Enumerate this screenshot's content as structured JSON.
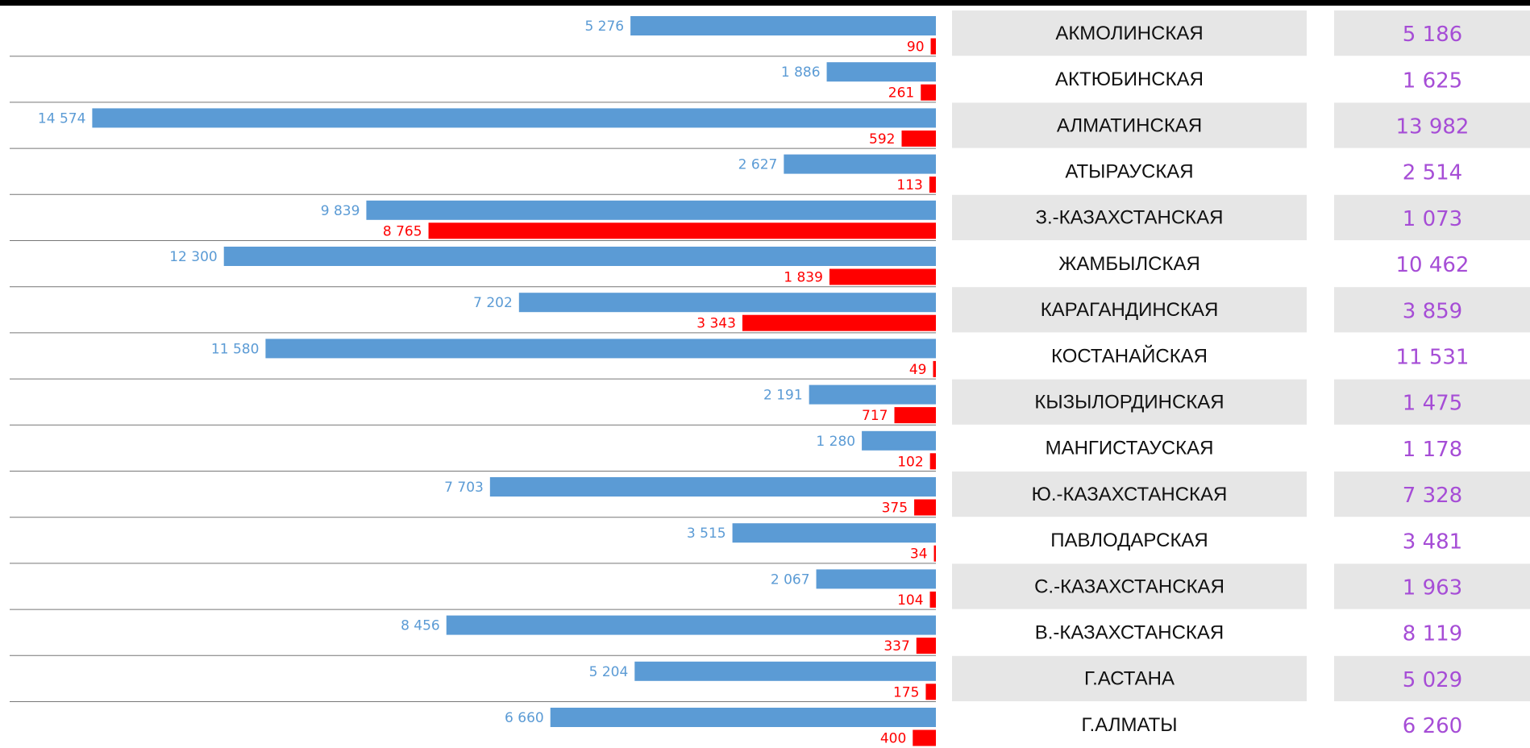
{
  "chart_data": {
    "type": "bar",
    "orientation": "horizontal",
    "x_reversed": true,
    "xlim": [
      0,
      16000
    ],
    "categories": [
      "АКМОЛИНСКАЯ",
      "АКТЮБИНСКАЯ",
      "АЛМАТИНСКАЯ",
      "АТЫРАУСКАЯ",
      "З.-КАЗАХСТАНСКАЯ",
      "ЖАМБЫЛСКАЯ",
      "КАРАГАНДИНСКАЯ",
      "КОСТАНАЙСКАЯ",
      "КЫЗЫЛОРДИНСКАЯ",
      "МАНГИСТАУСКАЯ",
      "Ю.-КАЗАХСТАНСКАЯ",
      "ПАВЛОДАРСКАЯ",
      "С.-КАЗАХСТАНСКАЯ",
      "В.-КАЗАХСТАНСКАЯ",
      "Г.АСТАНА",
      "Г.АЛМАТЫ"
    ],
    "series": [
      {
        "color": "#5b9bd5",
        "values": [
          5276,
          1886,
          14574,
          2627,
          9839,
          12300,
          7202,
          11580,
          2191,
          1280,
          7703,
          3515,
          2067,
          8456,
          5204,
          6660
        ],
        "value_labels": [
          "5 276",
          "1 886",
          "14 574",
          "2 627",
          "9 839",
          "12 300",
          "7 202",
          "11 580",
          "2 191",
          "1 280",
          "7 703",
          "3 515",
          "2 067",
          "8 456",
          "5 204",
          "6 660"
        ]
      },
      {
        "color": "#ff0000",
        "values": [
          90,
          261,
          592,
          113,
          8765,
          1839,
          3343,
          49,
          717,
          102,
          375,
          34,
          104,
          337,
          175,
          400
        ],
        "value_labels": [
          "90",
          "261",
          "592",
          "113",
          "8 765",
          "1 839",
          "3 343",
          "49",
          "717",
          "102",
          "375",
          "34",
          "104",
          "337",
          "175",
          "400"
        ]
      }
    ],
    "right_column": {
      "color": "#a64dd6",
      "values": [
        5186,
        1625,
        13982,
        2514,
        1073,
        10462,
        3859,
        11531,
        1475,
        1178,
        7328,
        3481,
        1963,
        8119,
        5029,
        6260
      ],
      "value_labels": [
        "5 186",
        "1 625",
        "13 982",
        "2 514",
        "1 073",
        "10 462",
        "3 859",
        "11 531",
        "1 475",
        "1 178",
        "7 328",
        "3 481",
        "1 963",
        "8 119",
        "5 029",
        "6 260"
      ]
    }
  }
}
